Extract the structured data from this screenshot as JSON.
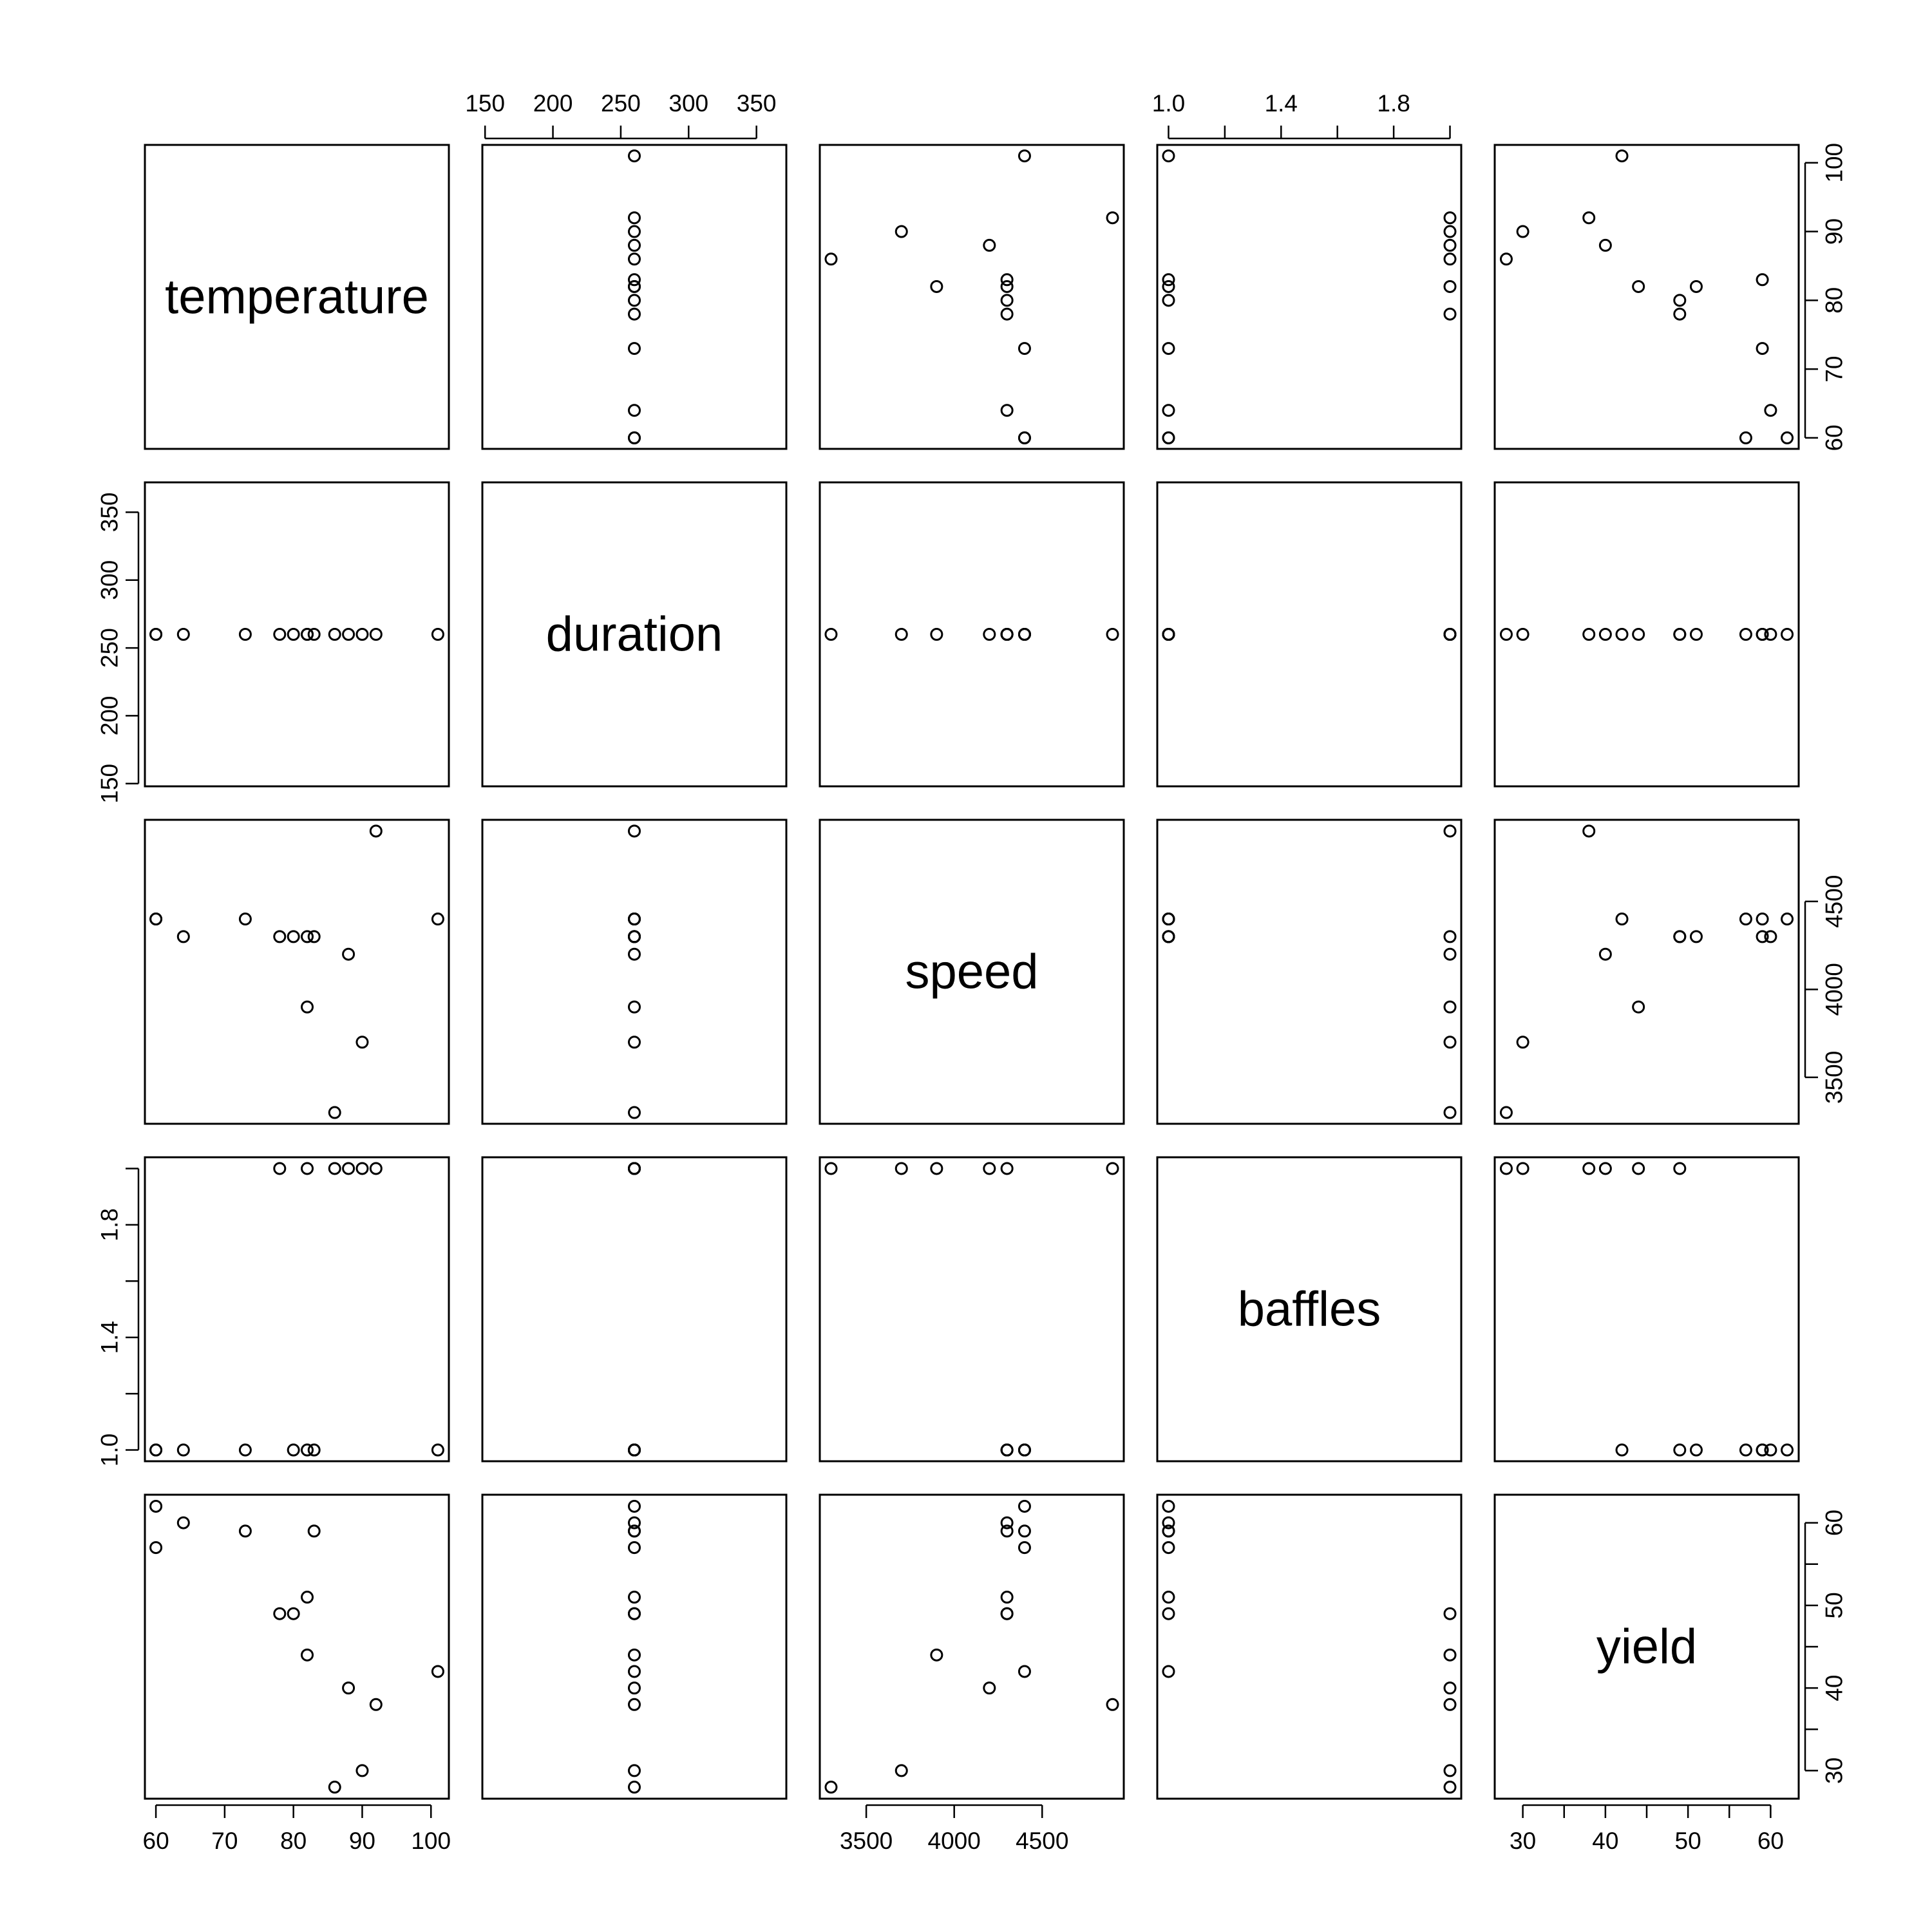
{
  "chart_data": {
    "type": "scatter",
    "title": "",
    "variables": [
      {
        "name": "temperature",
        "lim": [
          58.4,
          102.6
        ],
        "ticks": [
          60,
          70,
          80,
          90,
          100
        ]
      },
      {
        "name": "duration",
        "lim": [
          148,
          372
        ],
        "ticks": [
          150,
          200,
          250,
          300,
          350
        ]
      },
      {
        "name": "speed",
        "lim": [
          3236,
          4964
        ],
        "ticks": [
          3500,
          4000,
          4500
        ]
      },
      {
        "name": "baffles",
        "lim": [
          0.96,
          2.04
        ],
        "ticks": [
          1.0,
          1.2,
          1.4,
          1.6,
          1.8,
          2.0
        ],
        "tick_labels": [
          "1.0",
          "",
          "1.4",
          "",
          "1.8",
          ""
        ]
      },
      {
        "name": "yield",
        "lim": [
          26.6,
          63.4
        ],
        "ticks": [
          30,
          35,
          40,
          45,
          50,
          55,
          60
        ],
        "tick_labels": [
          "30",
          "",
          "40",
          "",
          "50",
          "",
          "60"
        ]
      }
    ],
    "observations": [
      {
        "temperature": 60,
        "duration": 260,
        "speed": 4400,
        "baffles": 1,
        "yield": 57
      },
      {
        "temperature": 60,
        "duration": 260,
        "speed": 4400,
        "baffles": 1,
        "yield": 62
      },
      {
        "temperature": 64,
        "duration": 260,
        "speed": 4300,
        "baffles": 1,
        "yield": 60
      },
      {
        "temperature": 73,
        "duration": 260,
        "speed": 4400,
        "baffles": 1,
        "yield": 59
      },
      {
        "temperature": 78,
        "duration": 260,
        "speed": 4300,
        "baffles": 2,
        "yield": 49
      },
      {
        "temperature": 80,
        "duration": 260,
        "speed": 4300,
        "baffles": 1,
        "yield": 49
      },
      {
        "temperature": 82,
        "duration": 260,
        "speed": 4300,
        "baffles": 1,
        "yield": 51
      },
      {
        "temperature": 82,
        "duration": 260,
        "speed": 3900,
        "baffles": 2,
        "yield": 44
      },
      {
        "temperature": 83,
        "duration": 260,
        "speed": 4300,
        "baffles": 1,
        "yield": 59
      },
      {
        "temperature": 86,
        "duration": 260,
        "speed": 3300,
        "baffles": 2,
        "yield": 28
      },
      {
        "temperature": 88,
        "duration": 260,
        "speed": 4200,
        "baffles": 2,
        "yield": 40
      },
      {
        "temperature": 90,
        "duration": 260,
        "speed": 3700,
        "baffles": 2,
        "yield": 30
      },
      {
        "temperature": 92,
        "duration": 260,
        "speed": 4900,
        "baffles": 2,
        "yield": 38
      },
      {
        "temperature": 101,
        "duration": 260,
        "speed": 4400,
        "baffles": 1,
        "yield": 42
      }
    ]
  }
}
